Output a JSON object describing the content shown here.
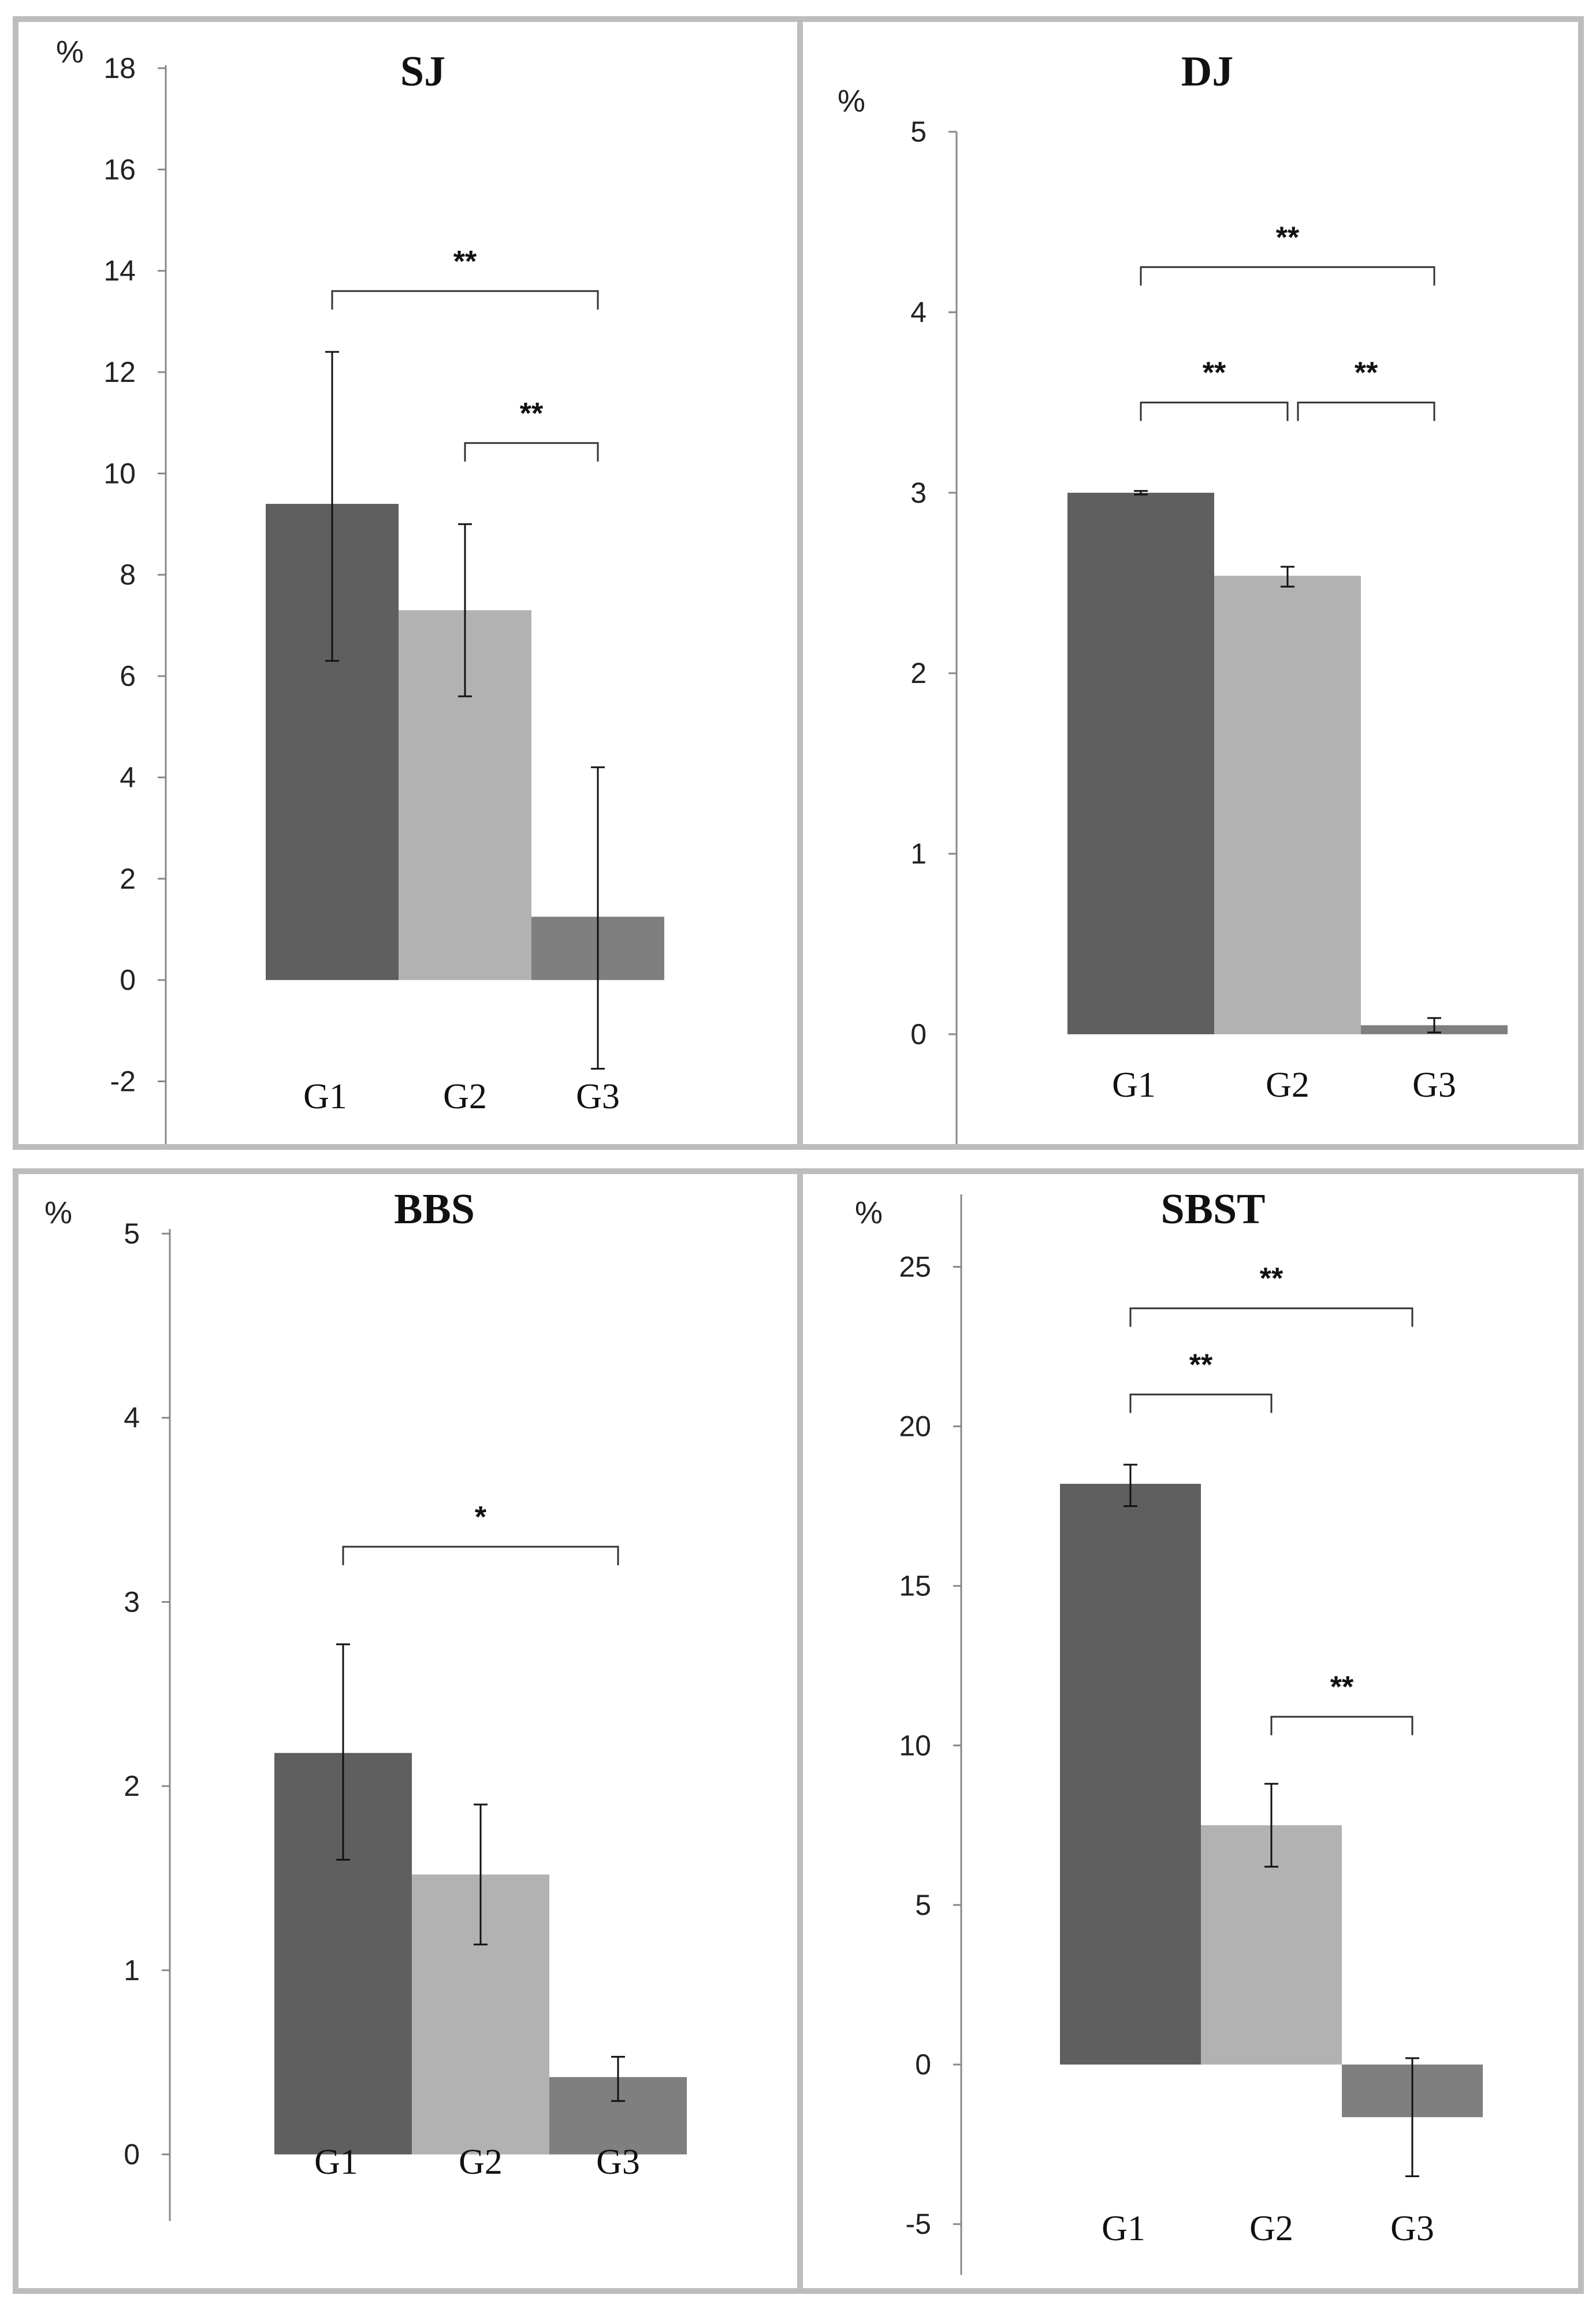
{
  "colors": {
    "G1": "#5f5f5f",
    "G2": "#b2b2b2",
    "G3": "#7f7f7f",
    "axis": "#888888",
    "bracket": "#333333",
    "border": "#bdbdbd"
  },
  "chart_data": [
    {
      "type": "bar",
      "title": "SJ",
      "ylabel": "%",
      "categories": [
        "G1",
        "G2",
        "G3"
      ],
      "values": [
        9.4,
        7.3,
        1.25
      ],
      "errors": [
        [
          6.3,
          12.4
        ],
        [
          5.6,
          9.0
        ],
        [
          -1.75,
          4.2
        ]
      ],
      "ylim": [
        -3.5,
        18
      ],
      "yticks": [
        -2,
        0,
        2,
        4,
        6,
        8,
        10,
        12,
        14,
        16,
        18
      ],
      "ytick_labels": [
        "-2",
        "0",
        "2",
        "4",
        "6",
        "8",
        "10",
        "12",
        "14",
        "16",
        "18"
      ],
      "significance": [
        {
          "from": 0,
          "to": 2,
          "label": "**",
          "y": 13.6
        },
        {
          "from": 1,
          "to": 2,
          "label": "**",
          "y": 10.6
        }
      ],
      "grid": false
    },
    {
      "type": "bar",
      "title": "DJ",
      "ylabel": "%",
      "categories": [
        "G1",
        "G2",
        "G3"
      ],
      "values": [
        3.0,
        2.54,
        0.05
      ],
      "errors": [
        [
          2.99,
          3.01
        ],
        [
          2.48,
          2.59
        ],
        [
          0.01,
          0.09
        ]
      ],
      "ylim": [
        -0.65,
        5
      ],
      "yticks": [
        0,
        1,
        2,
        3,
        4,
        5
      ],
      "ytick_labels": [
        "0",
        "1",
        "2",
        "3",
        "4",
        "5"
      ],
      "significance": [
        {
          "from": 0,
          "to": 2,
          "label": "**",
          "y": 4.25
        },
        {
          "from": 0,
          "to": 1,
          "label": "**",
          "y": 3.5
        },
        {
          "from": 1,
          "to": 2,
          "label": "**",
          "y": 3.5
        }
      ],
      "grid": false
    },
    {
      "type": "bar",
      "title": "BBS",
      "ylabel": "%",
      "categories": [
        "G1",
        "G2",
        "G3"
      ],
      "values": [
        2.18,
        1.52,
        0.42
      ],
      "errors": [
        [
          1.6,
          2.77
        ],
        [
          1.14,
          1.9
        ],
        [
          0.29,
          0.53
        ]
      ],
      "ylim": [
        -0.45,
        5
      ],
      "yticks": [
        0,
        1,
        2,
        3,
        4,
        5
      ],
      "ytick_labels": [
        "0",
        "1",
        "2",
        "3",
        "4",
        "5"
      ],
      "significance": [
        {
          "from": 0,
          "to": 2,
          "label": "*",
          "y": 3.3
        }
      ],
      "grid": false
    },
    {
      "type": "bar",
      "title": "SBST",
      "ylabel": "%",
      "categories": [
        "G1",
        "G2",
        "G3"
      ],
      "values": [
        18.2,
        7.5,
        -1.65
      ],
      "errors": [
        [
          17.5,
          18.8
        ],
        [
          6.2,
          8.8
        ],
        [
          -3.5,
          0.2
        ]
      ],
      "ylim": [
        -6.5,
        27
      ],
      "yticks": [
        -5,
        0,
        5,
        10,
        15,
        20,
        25
      ],
      "ytick_labels": [
        "-5",
        "0",
        "5",
        "10",
        "15",
        "20",
        "25"
      ],
      "significance": [
        {
          "from": 0,
          "to": 2,
          "label": "**",
          "y": 23.7
        },
        {
          "from": 0,
          "to": 1,
          "label": "**",
          "y": 21.0
        },
        {
          "from": 1,
          "to": 2,
          "label": "**",
          "y": 10.9
        }
      ],
      "grid": false
    }
  ]
}
